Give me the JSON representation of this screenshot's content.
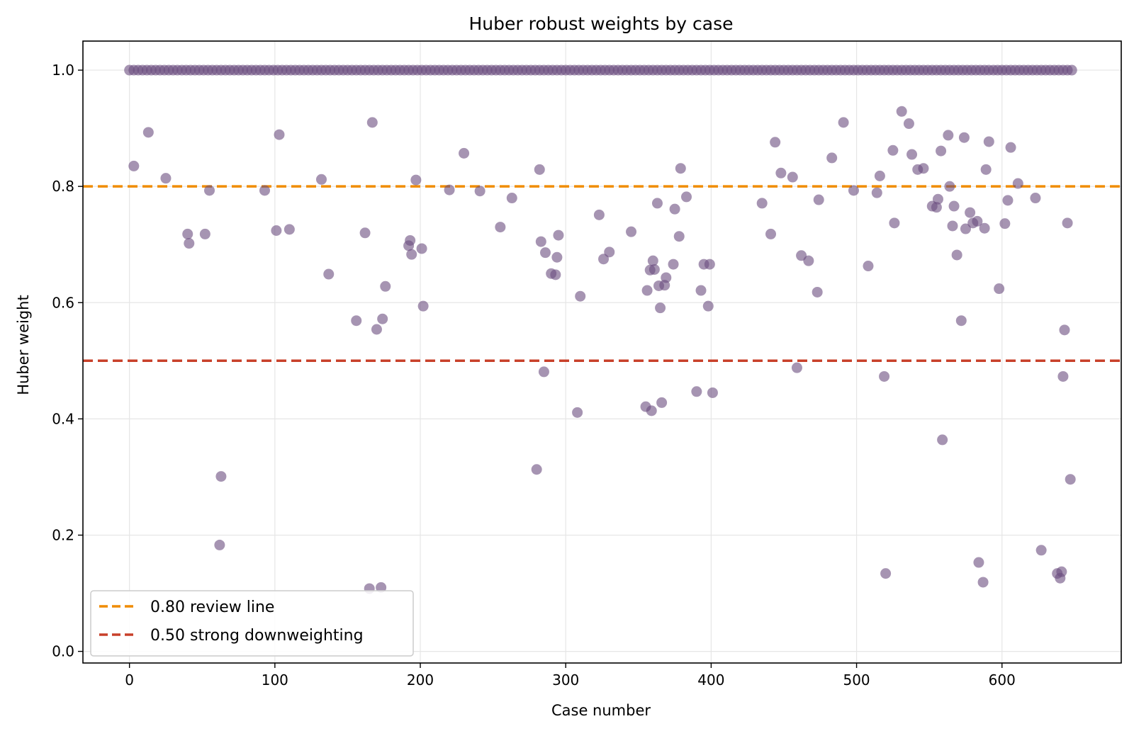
{
  "chart_data": {
    "type": "scatter",
    "title": "Huber robust weights by case",
    "xlabel": "Case number",
    "ylabel": "Huber weight",
    "xlim": [
      -32,
      682
    ],
    "ylim": [
      -0.02,
      1.05
    ],
    "xticks": [
      0,
      100,
      200,
      300,
      400,
      500,
      600
    ],
    "yticks": [
      0.0,
      0.2,
      0.4,
      0.6,
      0.8,
      1.0
    ],
    "xtick_labels": [
      "0",
      "100",
      "200",
      "300",
      "400",
      "500",
      "600"
    ],
    "ytick_labels": [
      "0.0",
      "0.2",
      "0.4",
      "0.6",
      "0.8",
      "1.0"
    ],
    "grid": true,
    "legend_position": "lower-left",
    "colors": {
      "points": "#6b4c7f",
      "review_line": "#f08c00",
      "strong_line": "#c8402a",
      "grid": "#e6e6e6"
    },
    "reference_lines": [
      {
        "name": "0.80 review line",
        "y": 0.8,
        "style": "dashed",
        "color": "#f08c00"
      },
      {
        "name": "0.50 strong downweighting",
        "y": 0.5,
        "style": "dashed",
        "color": "#c8402a"
      }
    ],
    "full_weight_cases": {
      "y": 1.0,
      "x_from": 0,
      "x_to": 650,
      "step": 3
    },
    "points": [
      [
        3,
        0.835
      ],
      [
        13,
        0.893
      ],
      [
        25,
        0.814
      ],
      [
        40,
        0.718
      ],
      [
        41,
        0.702
      ],
      [
        52,
        0.718
      ],
      [
        55,
        0.793
      ],
      [
        62,
        0.183
      ],
      [
        63,
        0.301
      ],
      [
        93,
        0.793
      ],
      [
        101,
        0.724
      ],
      [
        103,
        0.889
      ],
      [
        110,
        0.726
      ],
      [
        132,
        0.812
      ],
      [
        137,
        0.649
      ],
      [
        156,
        0.569
      ],
      [
        162,
        0.72
      ],
      [
        165,
        0.108
      ],
      [
        167,
        0.91
      ],
      [
        170,
        0.554
      ],
      [
        173,
        0.11
      ],
      [
        174,
        0.572
      ],
      [
        176,
        0.628
      ],
      [
        192,
        0.698
      ],
      [
        193,
        0.707
      ],
      [
        194,
        0.683
      ],
      [
        197,
        0.811
      ],
      [
        201,
        0.693
      ],
      [
        202,
        0.594
      ],
      [
        220,
        0.794
      ],
      [
        230,
        0.857
      ],
      [
        241,
        0.792
      ],
      [
        255,
        0.73
      ],
      [
        263,
        0.78
      ],
      [
        280,
        0.313
      ],
      [
        282,
        0.829
      ],
      [
        283,
        0.705
      ],
      [
        285,
        0.481
      ],
      [
        286,
        0.686
      ],
      [
        290,
        0.65
      ],
      [
        293,
        0.648
      ],
      [
        294,
        0.678
      ],
      [
        295,
        0.716
      ],
      [
        308,
        0.411
      ],
      [
        310,
        0.611
      ],
      [
        323,
        0.751
      ],
      [
        326,
        0.675
      ],
      [
        330,
        0.687
      ],
      [
        345,
        0.722
      ],
      [
        355,
        0.421
      ],
      [
        356,
        0.621
      ],
      [
        358,
        0.656
      ],
      [
        359,
        0.414
      ],
      [
        360,
        0.672
      ],
      [
        361,
        0.657
      ],
      [
        363,
        0.771
      ],
      [
        364,
        0.629
      ],
      [
        365,
        0.591
      ],
      [
        366,
        0.428
      ],
      [
        368,
        0.63
      ],
      [
        369,
        0.643
      ],
      [
        374,
        0.666
      ],
      [
        375,
        0.761
      ],
      [
        378,
        0.714
      ],
      [
        379,
        0.831
      ],
      [
        383,
        0.782
      ],
      [
        390,
        0.447
      ],
      [
        393,
        0.621
      ],
      [
        395,
        0.666
      ],
      [
        398,
        0.594
      ],
      [
        399,
        0.666
      ],
      [
        401,
        0.445
      ],
      [
        435,
        0.771
      ],
      [
        441,
        0.718
      ],
      [
        444,
        0.876
      ],
      [
        448,
        0.823
      ],
      [
        456,
        0.816
      ],
      [
        459,
        0.488
      ],
      [
        462,
        0.681
      ],
      [
        467,
        0.672
      ],
      [
        473,
        0.618
      ],
      [
        474,
        0.777
      ],
      [
        483,
        0.849
      ],
      [
        491,
        0.91
      ],
      [
        498,
        0.793
      ],
      [
        508,
        0.663
      ],
      [
        514,
        0.789
      ],
      [
        516,
        0.818
      ],
      [
        519,
        0.473
      ],
      [
        520,
        0.134
      ],
      [
        525,
        0.862
      ],
      [
        526,
        0.737
      ],
      [
        531,
        0.929
      ],
      [
        536,
        0.908
      ],
      [
        538,
        0.855
      ],
      [
        542,
        0.829
      ],
      [
        546,
        0.831
      ],
      [
        552,
        0.766
      ],
      [
        555,
        0.764
      ],
      [
        556,
        0.778
      ],
      [
        558,
        0.861
      ],
      [
        559,
        0.364
      ],
      [
        563,
        0.888
      ],
      [
        564,
        0.8
      ],
      [
        566,
        0.732
      ],
      [
        567,
        0.766
      ],
      [
        569,
        0.682
      ],
      [
        572,
        0.569
      ],
      [
        574,
        0.884
      ],
      [
        575,
        0.727
      ],
      [
        578,
        0.755
      ],
      [
        580,
        0.737
      ],
      [
        583,
        0.74
      ],
      [
        584,
        0.153
      ],
      [
        587,
        0.119
      ],
      [
        588,
        0.728
      ],
      [
        589,
        0.829
      ],
      [
        591,
        0.877
      ],
      [
        598,
        0.624
      ],
      [
        602,
        0.736
      ],
      [
        604,
        0.776
      ],
      [
        606,
        0.867
      ],
      [
        611,
        0.805
      ],
      [
        623,
        0.78
      ],
      [
        627,
        0.174
      ],
      [
        638,
        0.134
      ],
      [
        640,
        0.126
      ],
      [
        641,
        0.137
      ],
      [
        642,
        0.473
      ],
      [
        643,
        0.553
      ],
      [
        645,
        0.737
      ],
      [
        647,
        0.296
      ]
    ]
  }
}
